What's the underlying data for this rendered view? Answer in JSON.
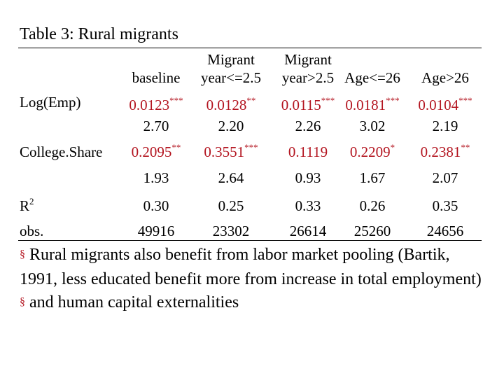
{
  "title": "Table 3: Rural migrants",
  "columns": [
    {
      "line1": "",
      "line2": "baseline"
    },
    {
      "line1": "Migrant",
      "line2": "year<=2.5"
    },
    {
      "line1": "Migrant",
      "line2": "year>2.5"
    },
    {
      "line1": "",
      "line2": "Age<=26"
    },
    {
      "line1": "",
      "line2": "Age>26"
    }
  ],
  "rows": [
    {
      "label": "Log(Emp)",
      "coefs": [
        {
          "value": "0.0123",
          "stars": "***"
        },
        {
          "value": "0.0128",
          "stars": "**"
        },
        {
          "value": "0.0115",
          "stars": "***"
        },
        {
          "value": "0.0181",
          "stars": "***"
        },
        {
          "value": "0.0104",
          "stars": "***"
        }
      ],
      "tstats": [
        "2.70",
        "2.20",
        "2.26",
        "3.02",
        "2.19"
      ]
    },
    {
      "label": "College.Share",
      "coefs": [
        {
          "value": "0.2095",
          "stars": "**"
        },
        {
          "value": "0.3551",
          "stars": "***"
        },
        {
          "value": "0.1119",
          "stars": ""
        },
        {
          "value": "0.2209",
          "stars": "*"
        },
        {
          "value": "0.2381",
          "stars": "**"
        }
      ],
      "tstats": [
        "1.93",
        "2.64",
        "0.93",
        "1.67",
        "2.07"
      ]
    }
  ],
  "r2": {
    "label": "R",
    "sup": "2",
    "values": [
      "0.30",
      "0.25",
      "0.33",
      "0.26",
      "0.35"
    ]
  },
  "obs": {
    "label": "obs.",
    "values": [
      "49916",
      "23302",
      "26614",
      "25260",
      "24656"
    ]
  },
  "notes": [
    {
      "bullet": "§",
      "text": "Rural migrants also benefit from labor market pooling (Bartik, 1991, less educated benefit more from increase in total employment)"
    },
    {
      "bullet": "§",
      "text": "and human capital externalities"
    }
  ],
  "colors": {
    "coefficient": "#b3141f",
    "bullet": "#b3141f",
    "text": "#000000"
  }
}
